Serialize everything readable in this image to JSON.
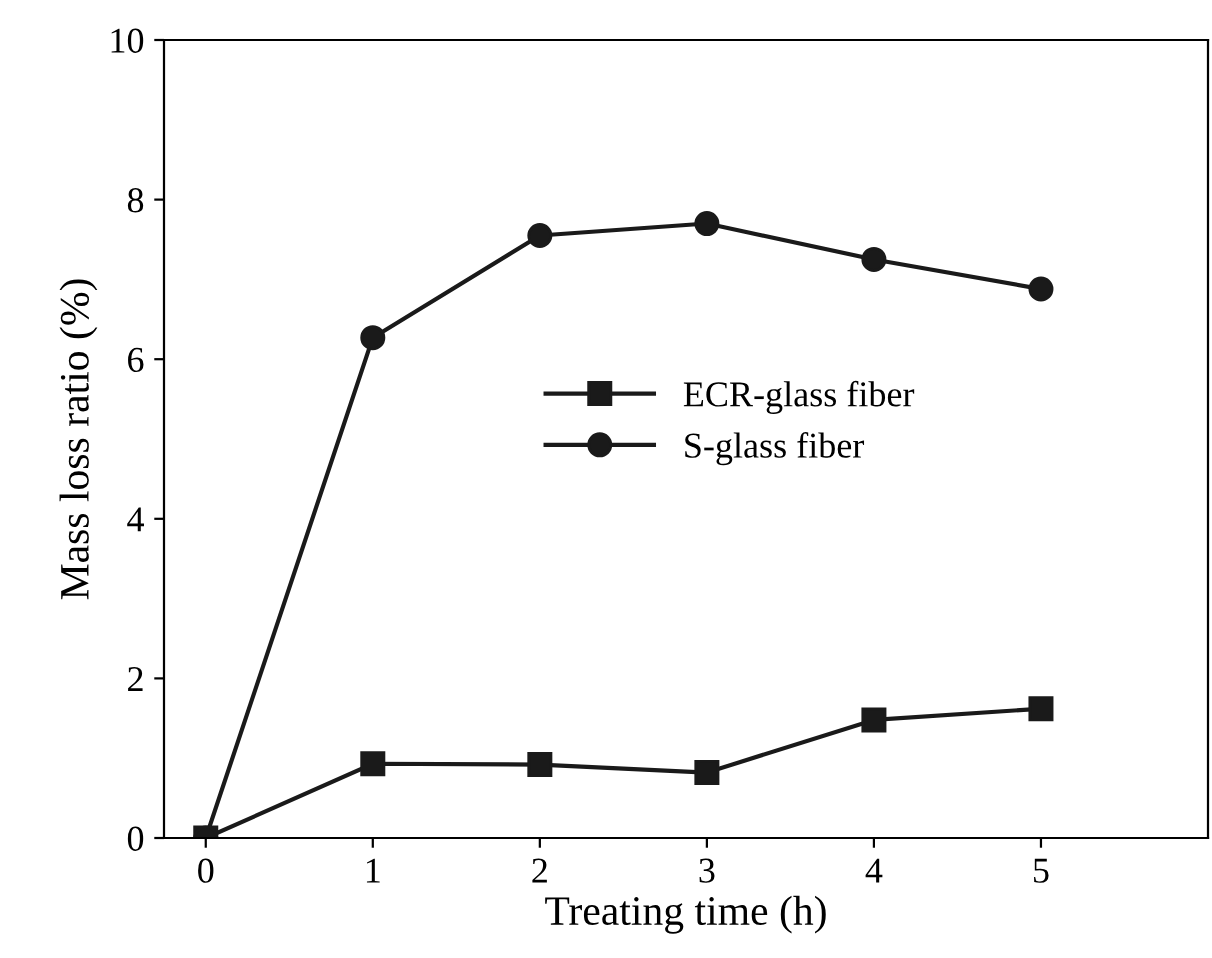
{
  "chart_data": {
    "type": "line",
    "xlabel": "Treating time (h)",
    "ylabel": "Mass loss ratio (%)",
    "x": [
      0,
      1,
      2,
      3,
      4,
      5
    ],
    "series": [
      {
        "name": "ECR-glass fiber",
        "color": "#1a1a1a",
        "marker": "square",
        "values": [
          0,
          0.93,
          0.92,
          0.82,
          1.48,
          1.62
        ]
      },
      {
        "name": "S-glass fiber",
        "color": "#1a1a1a",
        "marker": "circle",
        "values": [
          0,
          6.27,
          7.55,
          7.7,
          7.25,
          6.88
        ]
      }
    ],
    "xlim": [
      -0.25,
      6
    ],
    "xticks": [
      0,
      1,
      2,
      3,
      4,
      5
    ],
    "ylim": [
      0,
      10
    ],
    "yticks": [
      0,
      2,
      4,
      6,
      8,
      10
    ],
    "grid": false,
    "legend": "right",
    "line_style": "solid"
  }
}
